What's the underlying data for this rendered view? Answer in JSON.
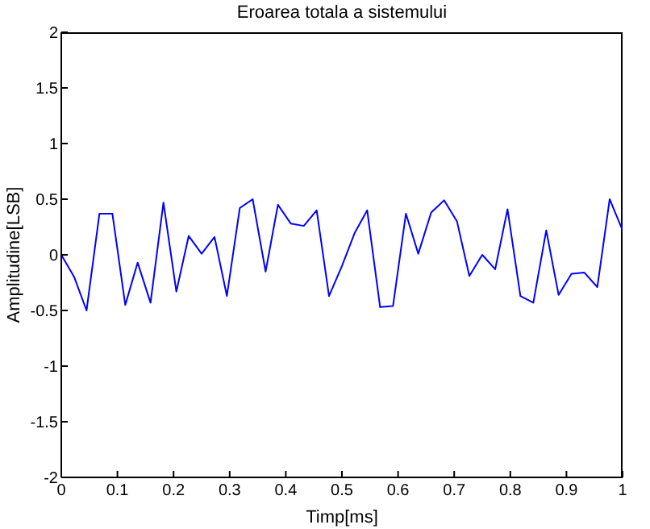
{
  "chart_data": {
    "type": "line",
    "title": "Eroarea totala a sistemului",
    "xlabel": "Timp[ms]",
    "ylabel": "Amplitudine[LSB]",
    "x": [
      0,
      0.023,
      0.045,
      0.068,
      0.091,
      0.114,
      0.136,
      0.159,
      0.182,
      0.205,
      0.227,
      0.25,
      0.273,
      0.295,
      0.318,
      0.341,
      0.364,
      0.386,
      0.409,
      0.432,
      0.455,
      0.477,
      0.5,
      0.523,
      0.545,
      0.568,
      0.591,
      0.614,
      0.636,
      0.659,
      0.682,
      0.705,
      0.727,
      0.75,
      0.773,
      0.795,
      0.818,
      0.841,
      0.864,
      0.886,
      0.909,
      0.932,
      0.955,
      0.977,
      1
    ],
    "series": [
      {
        "color": "#0000ff",
        "values": [
          0,
          -0.2,
          -0.5,
          0.37,
          0.37,
          -0.45,
          -0.07,
          -0.43,
          0.47,
          -0.33,
          0.17,
          0.01,
          0.16,
          -0.37,
          0.42,
          0.5,
          -0.15,
          0.45,
          0.28,
          0.26,
          0.4,
          -0.37,
          -0.1,
          0.2,
          0.4,
          -0.47,
          -0.46,
          0.37,
          0.01,
          0.38,
          0.49,
          0.3,
          -0.19,
          0,
          -0.13,
          0.41,
          -0.37,
          -0.43,
          0.22,
          -0.36,
          -0.17,
          -0.16,
          -0.29,
          0.5,
          0.22
        ]
      }
    ],
    "xlim": [
      0,
      1
    ],
    "xticks": [
      0,
      0.1,
      0.2,
      0.3,
      0.4,
      0.5,
      0.6,
      0.7,
      0.8,
      0.9,
      1
    ],
    "ylim": [
      -2,
      2
    ],
    "yticks": [
      -2,
      -1.5,
      -1,
      -0.5,
      0,
      0.5,
      1,
      1.5,
      2
    ],
    "grid": false,
    "legend": false,
    "marker": "none",
    "line_style": "solid"
  }
}
